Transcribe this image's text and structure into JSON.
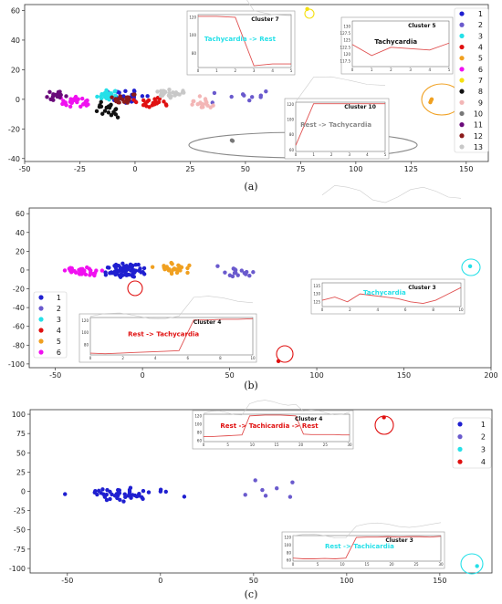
{
  "figure": {
    "captions": [
      "(a)",
      "(b)",
      "(c)"
    ]
  },
  "colors": {
    "1": "#1f1fd0",
    "2": "#6a5acd",
    "3": "#25e0e8",
    "4": "#e01010",
    "5": "#f0a020",
    "6": "#f010f0",
    "7": "#f5e010",
    "8": "#111111",
    "9": "#f3b6b6",
    "10": "#777777",
    "11": "#6a0a7a",
    "12": "#8b1a1a",
    "13": "#c8c8c8"
  },
  "chart_data": [
    {
      "type": "scatter",
      "panel": "a",
      "xlim": [
        -50,
        160
      ],
      "ylim": [
        -42,
        64
      ],
      "xticks": [
        -50,
        -25,
        0,
        25,
        50,
        75,
        100,
        125,
        150
      ],
      "yticks": [
        60,
        40,
        20,
        0,
        -20,
        -40
      ],
      "legend": [
        "1",
        "2",
        "3",
        "4",
        "5",
        "6",
        "7",
        "8",
        "9",
        "10",
        "11",
        "12",
        "13"
      ],
      "legend_position": "right",
      "clusters": [
        {
          "name": "1",
          "center": [
            -3,
            2
          ],
          "spread": [
            6,
            4
          ],
          "n": 30
        },
        {
          "name": "2",
          "center": [
            45,
            2
          ],
          "spread": [
            12,
            4
          ],
          "n": 10
        },
        {
          "name": "3",
          "center": [
            -13,
            3
          ],
          "spread": [
            4,
            3
          ],
          "n": 26
        },
        {
          "name": "4",
          "center": [
            8,
            -2
          ],
          "spread": [
            6,
            3
          ],
          "n": 22
        },
        {
          "name": "5",
          "center": [
            134,
            -1
          ],
          "spread": [
            1,
            1
          ],
          "n": 3
        },
        {
          "name": "6",
          "center": [
            -27,
            -2
          ],
          "spread": [
            5,
            3
          ],
          "n": 26
        },
        {
          "name": "7",
          "center": [
            78,
            61
          ],
          "spread": [
            0.5,
            0.5
          ],
          "n": 1
        },
        {
          "name": "8",
          "center": [
            -12,
            -7
          ],
          "spread": [
            4,
            4
          ],
          "n": 20
        },
        {
          "name": "9",
          "center": [
            31,
            -3
          ],
          "spread": [
            5,
            4
          ],
          "n": 18
        },
        {
          "name": "10",
          "center": [
            60,
            -28
          ],
          "spread": [
            28,
            1
          ],
          "n": 2
        },
        {
          "name": "11",
          "center": [
            -36,
            2
          ],
          "spread": [
            4,
            3
          ],
          "n": 18
        },
        {
          "name": "12",
          "center": [
            -5,
            0
          ],
          "spread": [
            5,
            3
          ],
          "n": 24
        },
        {
          "name": "13",
          "center": [
            15,
            4
          ],
          "spread": [
            6,
            3
          ],
          "n": 26
        }
      ],
      "insets": [
        {
          "title": "Cluster 7",
          "label": "Tachycardia  ->  Rest",
          "label_color": "#25e0e8",
          "yticks": [
            120,
            100,
            80
          ],
          "xticks": [
            0,
            1,
            2,
            3,
            4,
            5
          ],
          "line": [
            121,
            121,
            120,
            66,
            68,
            68
          ]
        },
        {
          "title": "Cluster 5",
          "label": "Tachycardia",
          "label_color": "#111111",
          "yticks": [
            130.0,
            127.5,
            125.0,
            122.5,
            120.0,
            117.5
          ],
          "xticks": [
            0,
            1,
            2,
            3,
            4,
            5
          ],
          "line": [
            123.5,
            119.5,
            122.5,
            122,
            121.5,
            124
          ]
        },
        {
          "title": "Cluster 10",
          "label": "Rest -> Tachycardia",
          "label_color": "#888888",
          "yticks": [
            120,
            100,
            80,
            60
          ],
          "xticks": [
            0,
            1,
            2,
            3,
            4,
            5
          ],
          "line": [
            66,
            121,
            121,
            121,
            121,
            121
          ]
        }
      ]
    },
    {
      "type": "scatter",
      "panel": "b",
      "xlim": [
        -65,
        200
      ],
      "ylim": [
        -104,
        66
      ],
      "xticks": [
        -50,
        0,
        50,
        100,
        150,
        200
      ],
      "yticks": [
        60,
        40,
        20,
        0,
        -20,
        -40,
        -60,
        -80,
        -100
      ],
      "legend": [
        "1",
        "2",
        "3",
        "4",
        "5",
        "6"
      ],
      "legend_position": "lower left",
      "clusters": [
        {
          "name": "1",
          "center": [
            -10,
            0
          ],
          "spread": [
            10,
            6
          ],
          "n": 70
        },
        {
          "name": "2",
          "center": [
            55,
            -2
          ],
          "spread": [
            12,
            5
          ],
          "n": 16
        },
        {
          "name": "3",
          "center": [
            188,
            4
          ],
          "spread": [
            0.5,
            0.5
          ],
          "n": 1
        },
        {
          "name": "4",
          "center": [
            78,
            -97
          ],
          "spread": [
            0.5,
            0.5
          ],
          "n": 1
        },
        {
          "name": "5",
          "center": [
            17,
            2
          ],
          "spread": [
            8,
            5
          ],
          "n": 30
        },
        {
          "name": "6",
          "center": [
            -35,
            0
          ],
          "spread": [
            10,
            4
          ],
          "n": 34
        }
      ],
      "insets": [
        {
          "title": "Cluster 4",
          "label": "Rest -> Tachycardia",
          "label_color": "#e01010",
          "yticks": [
            120,
            100,
            80
          ],
          "xticks": [
            0,
            2,
            4,
            6,
            8,
            10
          ],
          "line": [
            66,
            65,
            66,
            67,
            68,
            69,
            70,
            121,
            121,
            122,
            122,
            123
          ]
        },
        {
          "title": "Cluster 3",
          "label": "Tachycardia",
          "label_color": "#25e0e8",
          "yticks": [
            135,
            130,
            125
          ],
          "xticks": [
            0,
            2,
            4,
            6,
            8,
            10
          ],
          "line": [
            126,
            128,
            125,
            130,
            129,
            128,
            127,
            125,
            124,
            126,
            130,
            134
          ]
        }
      ]
    },
    {
      "type": "scatter",
      "panel": "c",
      "xlim": [
        -70,
        178
      ],
      "ylim": [
        -106,
        106
      ],
      "xticks": [
        -50,
        0,
        50,
        100,
        150
      ],
      "yticks": [
        100,
        75,
        50,
        25,
        0,
        -25,
        -50,
        -75,
        -100
      ],
      "legend": [
        "1",
        "2",
        "3",
        "4"
      ],
      "legend_position": "upper right",
      "clusters": [
        {
          "name": "1",
          "center": [
            -20,
            -4
          ],
          "spread": [
            20,
            7
          ],
          "n": 50
        },
        {
          "name": "2",
          "center": [
            55,
            0
          ],
          "spread": [
            20,
            15
          ],
          "n": 7
        },
        {
          "name": "3",
          "center": [
            170,
            -97
          ],
          "spread": [
            0.5,
            0.5
          ],
          "n": 1
        },
        {
          "name": "4",
          "center": [
            120,
            96
          ],
          "spread": [
            0.5,
            0.5
          ],
          "n": 1
        }
      ],
      "insets": [
        {
          "title": "Cluster 4",
          "label": "Rest -> Tachicardia -> Rest",
          "label_color": "#e01010",
          "yticks": [
            120,
            100,
            80,
            60
          ],
          "xticks": [
            0,
            5,
            10,
            15,
            20,
            25,
            30
          ],
          "line": [
            70,
            70,
            71,
            72,
            73,
            74,
            120,
            121,
            122,
            122,
            122,
            121,
            120,
            76,
            75,
            75,
            75,
            75,
            74,
            74
          ]
        },
        {
          "title": "Cluster 3",
          "label": "Rest -> Tachicardia",
          "label_color": "#25e0e8",
          "yticks": [
            120,
            100,
            80,
            60
          ],
          "xticks": [
            0,
            5,
            10,
            15,
            20,
            25,
            30
          ],
          "line": [
            66,
            64,
            64,
            65,
            64,
            66,
            120,
            121,
            121,
            122,
            121,
            122,
            122,
            121,
            123
          ]
        }
      ]
    }
  ]
}
